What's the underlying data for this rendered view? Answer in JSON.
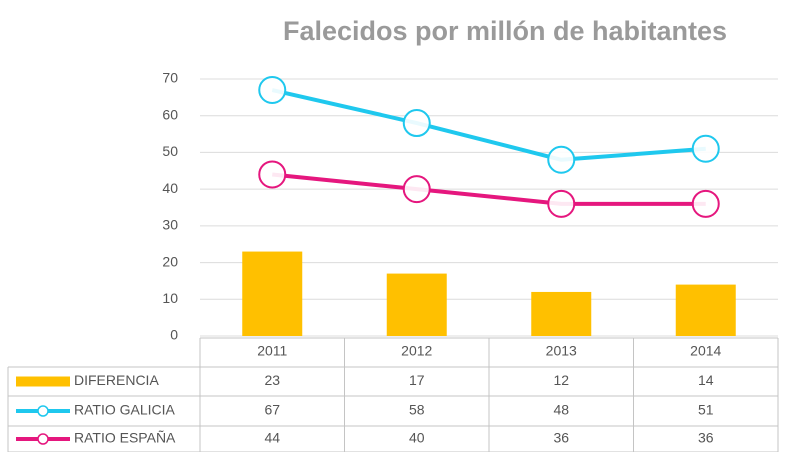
{
  "chart_data": {
    "type": "bar",
    "title": "Falecidos por millón de habitantes",
    "categories": [
      "2011",
      "2012",
      "2013",
      "2014"
    ],
    "series": [
      {
        "name": "DIFERENCIA",
        "type": "bar",
        "color": "#FFC000",
        "values": [
          23,
          17,
          12,
          14
        ]
      },
      {
        "name": "RATIO GALICIA",
        "type": "line",
        "color": "#1FC8EE",
        "values": [
          67,
          58,
          48,
          51
        ]
      },
      {
        "name": "RATIO ESPAÑA",
        "type": "line",
        "color": "#E5177E",
        "values": [
          44,
          40,
          36,
          36
        ]
      }
    ],
    "ylim": [
      0,
      70
    ],
    "yticks": [
      0,
      10,
      20,
      30,
      40,
      50,
      60,
      70
    ],
    "grid": true
  }
}
